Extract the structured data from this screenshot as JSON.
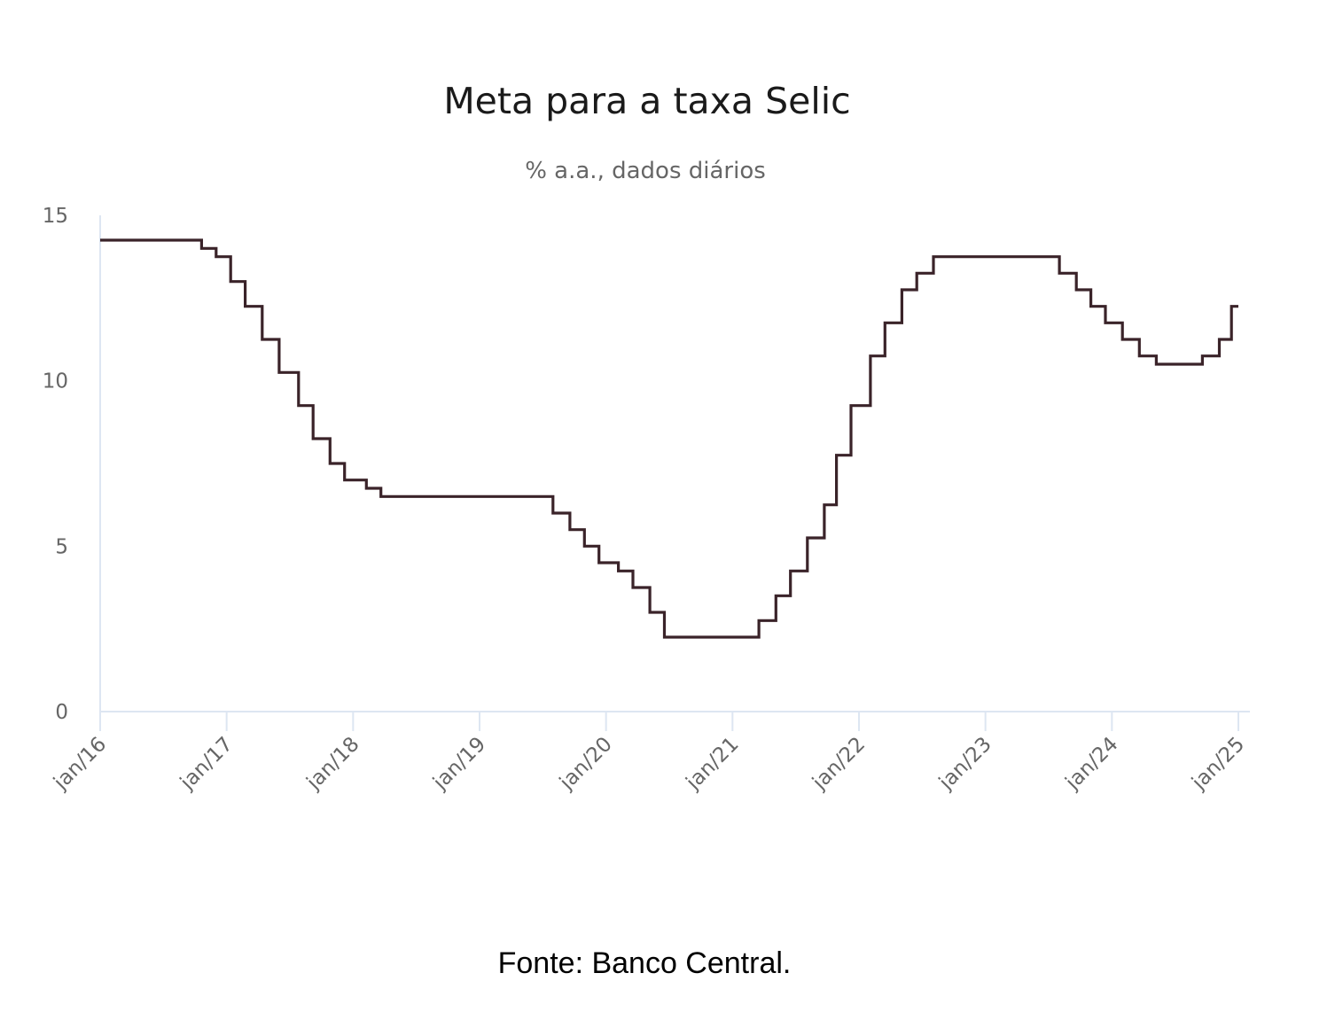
{
  "chart_data": {
    "type": "line",
    "step": true,
    "title": "Meta para a taxa Selic",
    "subtitle": "% a.a., dados diários",
    "xlabel": "",
    "ylabel": "",
    "ylim": [
      0,
      15
    ],
    "yticks": [
      0,
      5,
      10,
      15
    ],
    "xlim": [
      "2016-01",
      "2025-01"
    ],
    "xticks": [
      "jan/16",
      "jan/17",
      "jan/18",
      "jan/19",
      "jan/20",
      "jan/21",
      "jan/22",
      "jan/23",
      "jan/24",
      "jan/25"
    ],
    "grid": false,
    "line_color": "#3a2329",
    "series": [
      {
        "x": [
          "2016-01-01",
          "2016-10-20",
          "2016-12-01",
          "2017-01-12",
          "2017-02-23",
          "2017-04-13",
          "2017-06-01",
          "2017-07-27",
          "2017-09-07",
          "2017-10-26",
          "2017-12-07",
          "2018-02-08",
          "2018-03-22",
          "2019-08-01",
          "2019-09-19",
          "2019-10-31",
          "2019-12-12",
          "2020-02-06",
          "2020-03-19",
          "2020-05-07",
          "2020-06-18",
          "2021-03-18",
          "2021-05-06",
          "2021-06-17",
          "2021-08-05",
          "2021-09-23",
          "2021-10-28",
          "2021-12-09",
          "2022-02-03",
          "2022-03-17",
          "2022-05-05",
          "2022-06-17",
          "2022-08-04",
          "2023-08-03",
          "2023-09-21",
          "2023-11-02",
          "2023-12-14",
          "2024-02-01",
          "2024-03-21",
          "2024-05-09",
          "2024-09-19",
          "2024-11-07",
          "2024-12-12",
          "2025-01-01"
        ],
        "values": [
          14.25,
          14.0,
          13.75,
          13.0,
          12.25,
          11.25,
          10.25,
          9.25,
          8.25,
          7.5,
          7.0,
          6.75,
          6.5,
          6.0,
          5.5,
          5.0,
          4.5,
          4.25,
          3.75,
          3.0,
          2.25,
          2.75,
          3.5,
          4.25,
          5.25,
          6.25,
          7.75,
          9.25,
          10.75,
          11.75,
          12.75,
          13.25,
          13.75,
          13.25,
          12.75,
          12.25,
          11.75,
          11.25,
          10.75,
          10.5,
          10.75,
          11.25,
          12.25,
          12.25
        ]
      }
    ],
    "source_note": "Fonte: Banco Central."
  }
}
